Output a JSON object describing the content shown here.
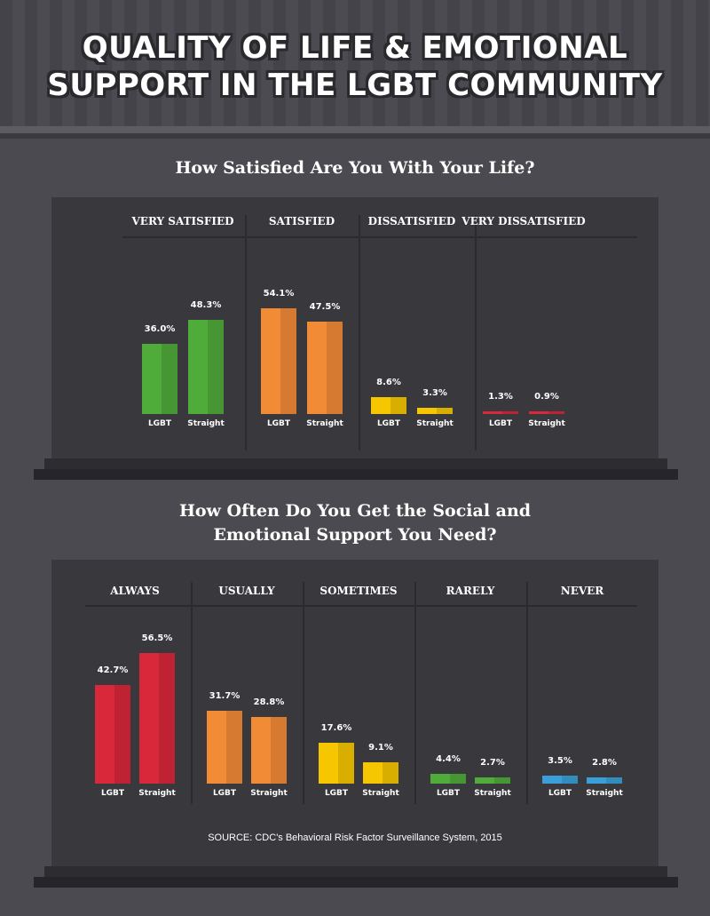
{
  "title_line1": "QUALITY OF LIFE & EMOTIONAL",
  "title_line2": "SUPPORT IN THE LGBT COMMUNITY",
  "source": "SOURCE: CDC's Behavioral Risk Factor Surveillance System, 2015",
  "colors": {
    "green": "#4fac3b",
    "orange": "#f28b36",
    "yellow": "#f6c600",
    "red": "#d9283a",
    "blue": "#3a9fd8"
  },
  "chart_data": [
    {
      "type": "bar",
      "title": "How Satisfied Are You With Your Life?",
      "title_lines": [
        "How Satisfied Are You With Your Life?"
      ],
      "categories": [
        "VERY SATISFIED",
        "SATISFIED",
        "DISSATISFIED",
        "VERY DISSATISFIED"
      ],
      "category_colors": [
        "#4fac3b",
        "#f28b36",
        "#f6c600",
        "#d9283a"
      ],
      "group_labels": [
        "LGBT",
        "Straight"
      ],
      "series": [
        {
          "name": "LGBT",
          "values": [
            36.0,
            54.1,
            8.6,
            1.3
          ],
          "labels": [
            "36.0%",
            "54.1%",
            "8.6%",
            "1.3%"
          ]
        },
        {
          "name": "Straight",
          "values": [
            48.3,
            47.5,
            3.3,
            0.9
          ],
          "labels": [
            "48.3%",
            "47.5%",
            "3.3%",
            "0.9%"
          ]
        }
      ],
      "ylim": [
        0,
        100
      ]
    },
    {
      "type": "bar",
      "title": "How Often Do You Get the Social and Emotional Support You Need?",
      "title_lines": [
        "How Often Do You Get the Social and",
        "Emotional Support You Need?"
      ],
      "categories": [
        "ALWAYS",
        "USUALLY",
        "SOMETIMES",
        "RARELY",
        "NEVER"
      ],
      "category_colors": [
        "#d9283a",
        "#f28b36",
        "#f6c600",
        "#4fac3b",
        "#3a9fd8"
      ],
      "group_labels": [
        "LGBT",
        "Straight"
      ],
      "series": [
        {
          "name": "LGBT",
          "values": [
            42.7,
            31.7,
            17.6,
            4.4,
            3.5
          ],
          "labels": [
            "42.7%",
            "31.7%",
            "17.6%",
            "4.4%",
            "3.5%"
          ]
        },
        {
          "name": "Straight",
          "values": [
            56.5,
            28.8,
            9.1,
            2.7,
            2.8
          ],
          "labels": [
            "56.5%",
            "28.8%",
            "9.1%",
            "2.7%",
            "2.8%"
          ]
        }
      ],
      "ylim": [
        0,
        100
      ]
    }
  ]
}
